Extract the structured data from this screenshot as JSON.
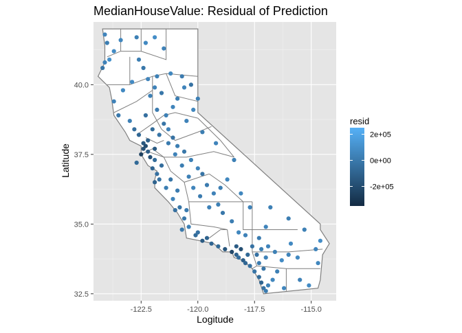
{
  "chart_data": {
    "type": "scatter",
    "title": "MedianHouseValue: Residual of Prediction",
    "xlabel": "Logitude",
    "ylabel": "Latitude",
    "xlim": [
      -124.6,
      -113.9
    ],
    "ylim": [
      32.25,
      42.25
    ],
    "x_ticks": [
      -122.5,
      -120.0,
      -117.5,
      -115.0
    ],
    "x_tick_labels": [
      "-122.5",
      "-120.0",
      "-117.5",
      "-115.0"
    ],
    "y_ticks": [
      32.5,
      35.0,
      37.5,
      40.0
    ],
    "y_tick_labels": [
      "32.5",
      "35.0",
      "37.5",
      "40.0"
    ],
    "grid": true,
    "background": "#e5e5e5",
    "map_outline_color": "#7f7f7f",
    "legend": {
      "title": "resid",
      "placement": "right",
      "type": "colorbar",
      "low_color": "#132b43",
      "high_color": "#56b1f7",
      "range": [
        -350000,
        250000
      ],
      "breaks": [
        200000,
        0,
        -200000
      ],
      "labels": [
        "2e+05",
        "0e+00",
        "-2e+05"
      ]
    },
    "point_cluster_note_free": true,
    "series": [
      {
        "points_lonlat_resid": [
          [
            -124.1,
            41.8,
            50000
          ],
          [
            -124.0,
            41.5,
            20000
          ],
          [
            -123.7,
            41.2,
            80000
          ],
          [
            -124.1,
            40.8,
            40000
          ],
          [
            -123.9,
            40.9,
            100000
          ],
          [
            -124.2,
            40.6,
            -20000
          ],
          [
            -123.4,
            41.6,
            60000
          ],
          [
            -122.7,
            41.7,
            30000
          ],
          [
            -122.3,
            41.5,
            70000
          ],
          [
            -121.9,
            41.7,
            90000
          ],
          [
            -121.5,
            41.3,
            40000
          ],
          [
            -122.6,
            40.9,
            20000
          ],
          [
            -122.4,
            40.6,
            -10000
          ],
          [
            -122.2,
            40.2,
            50000
          ],
          [
            -121.8,
            40.3,
            30000
          ],
          [
            -121.2,
            40.4,
            60000
          ],
          [
            -120.7,
            40.3,
            10000
          ],
          [
            -120.3,
            40.0,
            -30000
          ],
          [
            -122.9,
            40.1,
            80000
          ],
          [
            -123.3,
            39.8,
            70000
          ],
          [
            -123.7,
            39.4,
            40000
          ],
          [
            -123.5,
            38.9,
            0
          ],
          [
            -123.0,
            38.7,
            30000
          ],
          [
            -122.8,
            38.4,
            -50000
          ],
          [
            -122.6,
            38.2,
            -80000
          ],
          [
            -122.4,
            37.9,
            -150000
          ],
          [
            -122.3,
            37.8,
            -200000
          ],
          [
            -122.2,
            37.6,
            -120000
          ],
          [
            -122.1,
            37.4,
            -180000
          ],
          [
            -121.9,
            37.3,
            -60000
          ],
          [
            -122.0,
            37.0,
            -90000
          ],
          [
            -121.8,
            36.8,
            -40000
          ],
          [
            -121.7,
            36.6,
            -30000
          ],
          [
            -121.9,
            36.5,
            -100000
          ],
          [
            -121.4,
            36.3,
            20000
          ],
          [
            -121.1,
            35.9,
            50000
          ],
          [
            -120.8,
            35.6,
            -20000
          ],
          [
            -120.6,
            35.2,
            -10000
          ],
          [
            -120.4,
            34.9,
            30000
          ],
          [
            -120.1,
            34.6,
            -60000
          ],
          [
            -119.8,
            34.4,
            -140000
          ],
          [
            -119.4,
            34.3,
            -90000
          ],
          [
            -119.1,
            34.2,
            -70000
          ],
          [
            -118.8,
            34.1,
            -160000
          ],
          [
            -118.5,
            34.0,
            -220000
          ],
          [
            -118.3,
            33.9,
            -100000
          ],
          [
            -118.2,
            33.8,
            -50000
          ],
          [
            -118.0,
            33.7,
            -120000
          ],
          [
            -117.9,
            33.6,
            -80000
          ],
          [
            -117.7,
            33.5,
            -40000
          ],
          [
            -117.5,
            33.3,
            -20000
          ],
          [
            -117.3,
            33.1,
            -60000
          ],
          [
            -117.2,
            32.9,
            -90000
          ],
          [
            -117.1,
            32.7,
            -30000
          ],
          [
            -117.0,
            32.6,
            10000
          ],
          [
            -116.9,
            32.8,
            40000
          ],
          [
            -116.7,
            33.0,
            60000
          ],
          [
            -116.5,
            33.3,
            30000
          ],
          [
            -116.3,
            33.7,
            80000
          ],
          [
            -116.0,
            33.9,
            50000
          ],
          [
            -115.6,
            33.8,
            70000
          ],
          [
            -115.5,
            33.0,
            40000
          ],
          [
            -114.7,
            33.6,
            60000
          ],
          [
            -114.6,
            34.4,
            90000
          ],
          [
            -115.3,
            34.8,
            30000
          ],
          [
            -116.0,
            35.2,
            20000
          ],
          [
            -117.0,
            34.9,
            50000
          ],
          [
            -117.3,
            34.5,
            10000
          ],
          [
            -117.6,
            34.2,
            -30000
          ],
          [
            -117.9,
            34.6,
            40000
          ],
          [
            -118.2,
            34.7,
            60000
          ],
          [
            -118.5,
            35.1,
            20000
          ],
          [
            -118.9,
            35.4,
            -10000
          ],
          [
            -119.1,
            35.7,
            30000
          ],
          [
            -119.3,
            36.1,
            40000
          ],
          [
            -119.6,
            36.4,
            10000
          ],
          [
            -119.8,
            36.8,
            -20000
          ],
          [
            -120.0,
            37.0,
            50000
          ],
          [
            -120.3,
            37.3,
            30000
          ],
          [
            -120.6,
            37.6,
            -10000
          ],
          [
            -120.9,
            37.8,
            20000
          ],
          [
            -121.1,
            38.1,
            -30000
          ],
          [
            -121.3,
            38.4,
            40000
          ],
          [
            -121.5,
            38.6,
            -20000
          ],
          [
            -121.4,
            38.9,
            30000
          ],
          [
            -121.1,
            39.2,
            50000
          ],
          [
            -120.9,
            39.5,
            20000
          ],
          [
            -121.6,
            39.7,
            -10000
          ],
          [
            -121.9,
            39.9,
            40000
          ],
          [
            -122.1,
            39.6,
            30000
          ],
          [
            -121.8,
            39.1,
            10000
          ],
          [
            -122.3,
            38.9,
            -40000
          ],
          [
            -122.0,
            38.4,
            -60000
          ],
          [
            -121.7,
            38.2,
            -20000
          ],
          [
            -121.3,
            37.9,
            10000
          ],
          [
            -121.0,
            37.5,
            40000
          ],
          [
            -120.7,
            37.1,
            20000
          ],
          [
            -120.4,
            36.7,
            30000
          ],
          [
            -120.2,
            36.3,
            50000
          ],
          [
            -119.9,
            36.0,
            10000
          ],
          [
            -119.5,
            35.6,
            40000
          ],
          [
            -119.0,
            36.3,
            20000
          ],
          [
            -118.7,
            36.6,
            60000
          ],
          [
            -118.4,
            37.3,
            30000
          ],
          [
            -119.2,
            37.9,
            50000
          ],
          [
            -119.8,
            38.3,
            20000
          ],
          [
            -120.5,
            38.7,
            40000
          ],
          [
            -120.2,
            39.1,
            60000
          ],
          [
            -120.0,
            39.5,
            30000
          ],
          [
            -120.6,
            39.9,
            50000
          ],
          [
            -122.7,
            37.2,
            -70000
          ],
          [
            -122.5,
            37.5,
            -250000
          ],
          [
            -122.4,
            37.7,
            -180000
          ],
          [
            -122.2,
            38.0,
            -110000
          ],
          [
            -121.9,
            37.7,
            -140000
          ],
          [
            -121.6,
            37.1,
            -50000
          ],
          [
            -121.2,
            36.6,
            -20000
          ],
          [
            -120.9,
            36.2,
            10000
          ],
          [
            -118.1,
            34.1,
            -190000
          ],
          [
            -118.3,
            34.2,
            -130000
          ],
          [
            -117.8,
            33.9,
            -70000
          ],
          [
            -117.4,
            33.9,
            -30000
          ],
          [
            -117.2,
            34.1,
            20000
          ],
          [
            -116.9,
            34.2,
            50000
          ],
          [
            -116.6,
            34.0,
            30000
          ],
          [
            -117.1,
            33.4,
            -20000
          ],
          [
            -117.3,
            33.6,
            10000
          ],
          [
            -117.0,
            33.8,
            40000
          ],
          [
            -116.2,
            32.7,
            60000
          ],
          [
            -115.1,
            32.8,
            80000
          ],
          [
            -114.8,
            34.1,
            50000
          ],
          [
            -115.9,
            34.3,
            70000
          ],
          [
            -116.8,
            35.6,
            30000
          ],
          [
            -117.7,
            35.6,
            40000
          ],
          [
            -118.1,
            36.1,
            60000
          ],
          [
            -119.6,
            34.5,
            -100000
          ],
          [
            -120.0,
            34.7,
            -30000
          ],
          [
            -120.5,
            35.5,
            10000
          ],
          [
            -121.0,
            35.5,
            -40000
          ],
          [
            -120.7,
            34.8,
            0
          ]
        ]
      }
    ]
  }
}
